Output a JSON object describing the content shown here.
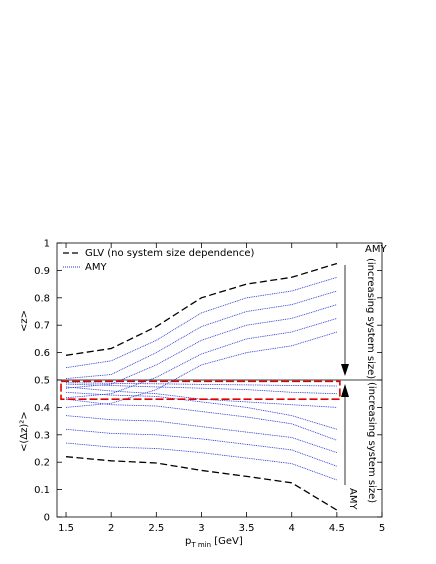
{
  "chart_data": {
    "type": "line",
    "xlabel": "p_Tmin [GeV]",
    "xlabel_main": "p",
    "xlabel_sub": "T min",
    "xlabel_unit": " [GeV]",
    "ylabel_upper": "<z>",
    "ylabel_lower": "<(Δz)²>",
    "xlim": [
      1.4,
      5.0
    ],
    "ylim": [
      0,
      1
    ],
    "x_ticks": [
      "1.5",
      "2",
      "2.5",
      "3",
      "3.5",
      "4",
      "4.5",
      "5"
    ],
    "y_ticks": [
      "0",
      "0.1",
      "0.2",
      "0.3",
      "0.4",
      "0.5",
      "0.6",
      "0.7",
      "0.8",
      "0.9",
      "1"
    ],
    "x": [
      1.5,
      2.0,
      2.5,
      3.0,
      3.5,
      4.0,
      4.5
    ],
    "divider_y": 0.5,
    "highlight_box": {
      "x": [
        1.5,
        4.5
      ],
      "y": [
        0.43,
        0.495
      ],
      "color": "#e00000"
    },
    "legend": {
      "placement": "top-left",
      "entries": [
        {
          "label": "GLV (no system size dependence)",
          "style": "dashed",
          "color": "#000000"
        },
        {
          "label": "AMY",
          "style": "dotted",
          "color": "#2030d0"
        }
      ]
    },
    "annotations": {
      "upper_title": "AMY",
      "upper_sub": "(increasing system size)",
      "lower_title": "AMY",
      "lower_sub": "(increasing system size)"
    },
    "series": [
      {
        "group": "GLV",
        "panel": "mean",
        "values": [
          0.59,
          0.615,
          0.695,
          0.8,
          0.85,
          0.875,
          0.925
        ]
      },
      {
        "group": "GLV",
        "panel": "variance",
        "values": [
          0.22,
          0.205,
          0.197,
          0.17,
          0.148,
          0.125,
          0.025
        ]
      },
      {
        "group": "AMY",
        "panel": "mean",
        "values": [
          0.545,
          0.57,
          0.645,
          0.745,
          0.8,
          0.825,
          0.875
        ]
      },
      {
        "group": "AMY",
        "panel": "mean",
        "values": [
          0.505,
          0.52,
          0.6,
          0.695,
          0.75,
          0.775,
          0.825
        ]
      },
      {
        "group": "AMY",
        "panel": "mean",
        "values": [
          0.47,
          0.485,
          0.555,
          0.645,
          0.7,
          0.725,
          0.775
        ]
      },
      {
        "group": "AMY",
        "panel": "mean",
        "values": [
          0.435,
          0.45,
          0.51,
          0.595,
          0.65,
          0.675,
          0.725
        ]
      },
      {
        "group": "AMY",
        "panel": "mean",
        "values": [
          0.4,
          0.415,
          0.465,
          0.555,
          0.6,
          0.625,
          0.675
        ]
      },
      {
        "group": "AMY",
        "panel": "variance",
        "values": [
          0.455,
          0.445,
          0.44,
          0.42,
          0.4,
          0.37,
          0.32
        ]
      },
      {
        "group": "AMY",
        "panel": "variance",
        "values": [
          0.43,
          0.41,
          0.405,
          0.385,
          0.365,
          0.34,
          0.28
        ]
      },
      {
        "group": "AMY",
        "panel": "variance",
        "values": [
          0.37,
          0.355,
          0.35,
          0.33,
          0.31,
          0.29,
          0.235
        ]
      },
      {
        "group": "AMY",
        "panel": "variance",
        "values": [
          0.32,
          0.305,
          0.3,
          0.285,
          0.265,
          0.245,
          0.185
        ]
      },
      {
        "group": "AMY",
        "panel": "variance",
        "values": [
          0.27,
          0.255,
          0.25,
          0.235,
          0.215,
          0.195,
          0.135
        ]
      },
      {
        "group": "AMY",
        "panel": "crossing",
        "values": [
          0.475,
          0.46,
          0.45,
          0.43,
          0.42,
          0.41,
          0.4
        ]
      },
      {
        "group": "AMY",
        "panel": "crossing",
        "values": [
          0.485,
          0.48,
          0.475,
          0.47,
          0.465,
          0.455,
          0.45
        ]
      },
      {
        "group": "AMY",
        "panel": "crossing",
        "values": [
          0.49,
          0.488,
          0.486,
          0.484,
          0.482,
          0.48,
          0.478
        ]
      }
    ]
  }
}
